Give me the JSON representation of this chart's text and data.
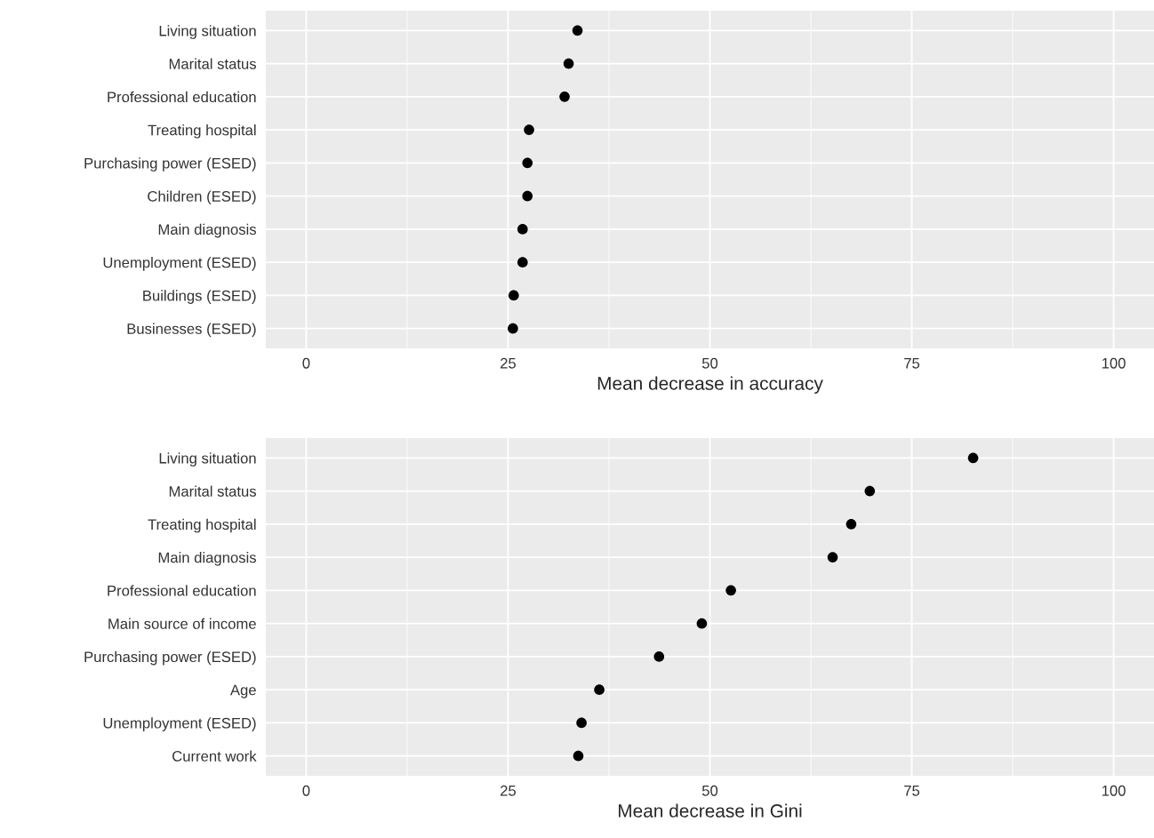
{
  "chart_data": [
    {
      "type": "scatter",
      "xlabel": "Mean decrease in accuracy",
      "categories": [
        "Living situation",
        "Marital status",
        "Professional education",
        "Treating hospital",
        "Purchasing power (ESED)",
        "Children (ESED)",
        "Main diagnosis",
        "Unemployment (ESED)",
        "Buildings (ESED)",
        "Businesses (ESED)"
      ],
      "series": [
        {
          "color": "#000000",
          "values": [
            33.6,
            32.5,
            32.0,
            27.6,
            27.4,
            27.4,
            26.8,
            26.8,
            25.7,
            25.6
          ]
        }
      ],
      "orientation": "horizontal",
      "xlim": [
        -5,
        105
      ],
      "xticks": [
        0,
        25,
        50,
        75,
        100
      ],
      "grid": true,
      "marker": "circle",
      "legend": false
    },
    {
      "type": "scatter",
      "xlabel": "Mean decrease in Gini",
      "categories": [
        "Living situation",
        "Marital status",
        "Treating hospital",
        "Main diagnosis",
        "Professional education",
        "Main source of income",
        "Purchasing power (ESED)",
        "Age",
        "Unemployment (ESED)",
        "Current work"
      ],
      "series": [
        {
          "color": "#000000",
          "values": [
            82.6,
            69.8,
            67.5,
            65.2,
            52.6,
            49.0,
            43.7,
            36.3,
            34.1,
            33.7
          ]
        }
      ],
      "orientation": "horizontal",
      "xlim": [
        -5,
        105
      ],
      "xticks": [
        0,
        25,
        50,
        75,
        100
      ],
      "grid": true,
      "marker": "circle",
      "legend": false
    }
  ]
}
